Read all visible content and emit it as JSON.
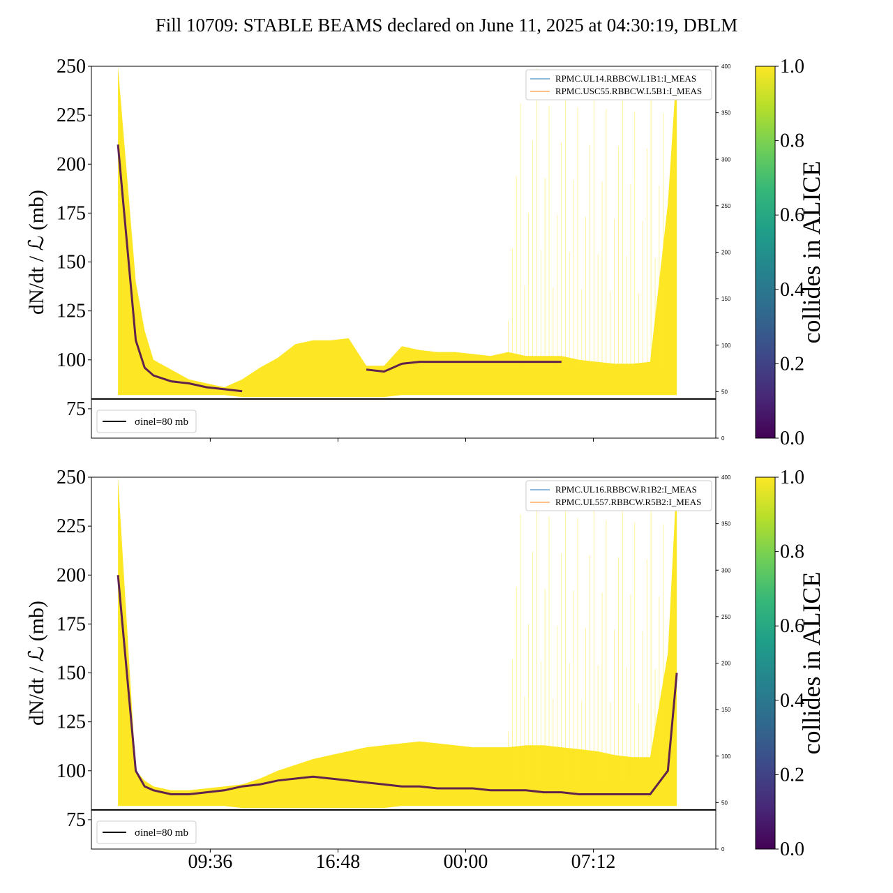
{
  "title": "Fill 10709: STABLE BEAMS declared on June 11, 2025 at 04:30:19, DBLM",
  "colors": {
    "yellow": "#fde725",
    "purple": "#440154",
    "line_blue": "#1f77b4",
    "line_orange": "#ff7f0e"
  },
  "chart_data": [
    {
      "type": "scatter",
      "panel": "top",
      "ylabel": "dN/dt / ℒ (mb)",
      "ylim": [
        60,
        250
      ],
      "y_ticks": [
        75,
        100,
        125,
        150,
        175,
        200,
        225,
        250
      ],
      "x_ticks": [
        "09:36",
        "16:48",
        "00:00",
        "07:12"
      ],
      "x_tick_labels_shown": false,
      "y2lim": [
        0,
        400
      ],
      "y2_ticks": [
        0,
        50,
        100,
        150,
        200,
        250,
        300,
        350,
        400
      ],
      "legend_top": [
        "RPMC.UL14.RBBCW.L1B1:I_MEAS",
        "RPMC.USC55.RBBCW.L5B1:I_MEAS"
      ],
      "legend_bottom": "σinel=80 mb",
      "reference_line": 80,
      "colorbar": {
        "label": "collides in ALICE",
        "range": [
          0.0,
          1.0
        ],
        "ticks": [
          "0.0",
          "0.2",
          "0.4",
          "0.6",
          "0.8",
          "1.0"
        ]
      },
      "x_hours": [
        0,
        1,
        1.5,
        2,
        3,
        4,
        5,
        6,
        7,
        8,
        9,
        10,
        11,
        12,
        13,
        14,
        15,
        16,
        17,
        18,
        19,
        20,
        21,
        22,
        23,
        24,
        25,
        26,
        27,
        28,
        29,
        30,
        31,
        31.5
      ],
      "upper_envelope": [
        250,
        140,
        115,
        100,
        95,
        90,
        88,
        86,
        90,
        96,
        101,
        108,
        110,
        110,
        111,
        97,
        97,
        107,
        105,
        104,
        104,
        103,
        102,
        104,
        102,
        102,
        102,
        100,
        99,
        98,
        98,
        99,
        180,
        250
      ],
      "lower_envelope": [
        82,
        82,
        82,
        82,
        82,
        82,
        82,
        82,
        81,
        81,
        81,
        81,
        81,
        81,
        81,
        81,
        81,
        82,
        82,
        82,
        82,
        82,
        82,
        82,
        82,
        82,
        82,
        82,
        82,
        82,
        82,
        82,
        82,
        82
      ],
      "colliding_band": [
        210,
        110,
        96,
        92,
        89,
        88,
        86,
        85,
        84,
        0,
        0,
        0,
        0,
        0,
        0,
        95,
        94,
        98,
        99,
        99,
        99,
        99,
        99,
        99,
        99,
        99,
        99,
        0,
        0,
        0,
        0,
        94,
        0,
        0
      ]
    },
    {
      "type": "scatter",
      "panel": "bottom",
      "ylabel": "dN/dt / ℒ (mb)",
      "ylim": [
        60,
        250
      ],
      "y_ticks": [
        75,
        100,
        125,
        150,
        175,
        200,
        225,
        250
      ],
      "x_ticks": [
        "09:36",
        "16:48",
        "00:00",
        "07:12"
      ],
      "x_tick_labels_shown": true,
      "y2lim": [
        0,
        400
      ],
      "y2_ticks": [
        0,
        50,
        100,
        150,
        200,
        250,
        300,
        350,
        400
      ],
      "legend_top": [
        "RPMC.UL16.RBBCW.R1B2:I_MEAS",
        "RPMC.UL557.RBBCW.R5B2:I_MEAS"
      ],
      "legend_bottom": "σinel=80 mb",
      "reference_line": 80,
      "colorbar": {
        "label": "collides in ALICE",
        "range": [
          0.0,
          1.0
        ],
        "ticks": [
          "0.0",
          "0.2",
          "0.4",
          "0.6",
          "0.8",
          "1.0"
        ]
      },
      "x_hours": [
        0,
        1,
        1.5,
        2,
        3,
        4,
        5,
        6,
        7,
        8,
        9,
        10,
        11,
        12,
        13,
        14,
        15,
        16,
        17,
        18,
        19,
        20,
        21,
        22,
        23,
        24,
        25,
        26,
        27,
        28,
        29,
        30,
        31,
        31.5
      ],
      "upper_envelope": [
        250,
        100,
        95,
        92,
        90,
        90,
        91,
        92,
        93,
        96,
        100,
        103,
        106,
        108,
        110,
        112,
        113,
        114,
        115,
        114,
        113,
        112,
        112,
        112,
        113,
        113,
        112,
        111,
        110,
        108,
        107,
        107,
        160,
        250
      ],
      "lower_envelope": [
        82,
        82,
        82,
        82,
        82,
        82,
        82,
        82,
        81,
        81,
        81,
        81,
        81,
        81,
        81,
        81,
        81,
        82,
        82,
        82,
        82,
        82,
        82,
        82,
        82,
        82,
        82,
        82,
        82,
        82,
        82,
        82,
        82,
        82
      ],
      "colliding_band": [
        200,
        100,
        92,
        90,
        88,
        88,
        89,
        90,
        92,
        93,
        95,
        96,
        97,
        96,
        95,
        94,
        93,
        92,
        92,
        91,
        91,
        91,
        90,
        90,
        90,
        89,
        89,
        88,
        88,
        88,
        88,
        88,
        100,
        150
      ]
    }
  ]
}
